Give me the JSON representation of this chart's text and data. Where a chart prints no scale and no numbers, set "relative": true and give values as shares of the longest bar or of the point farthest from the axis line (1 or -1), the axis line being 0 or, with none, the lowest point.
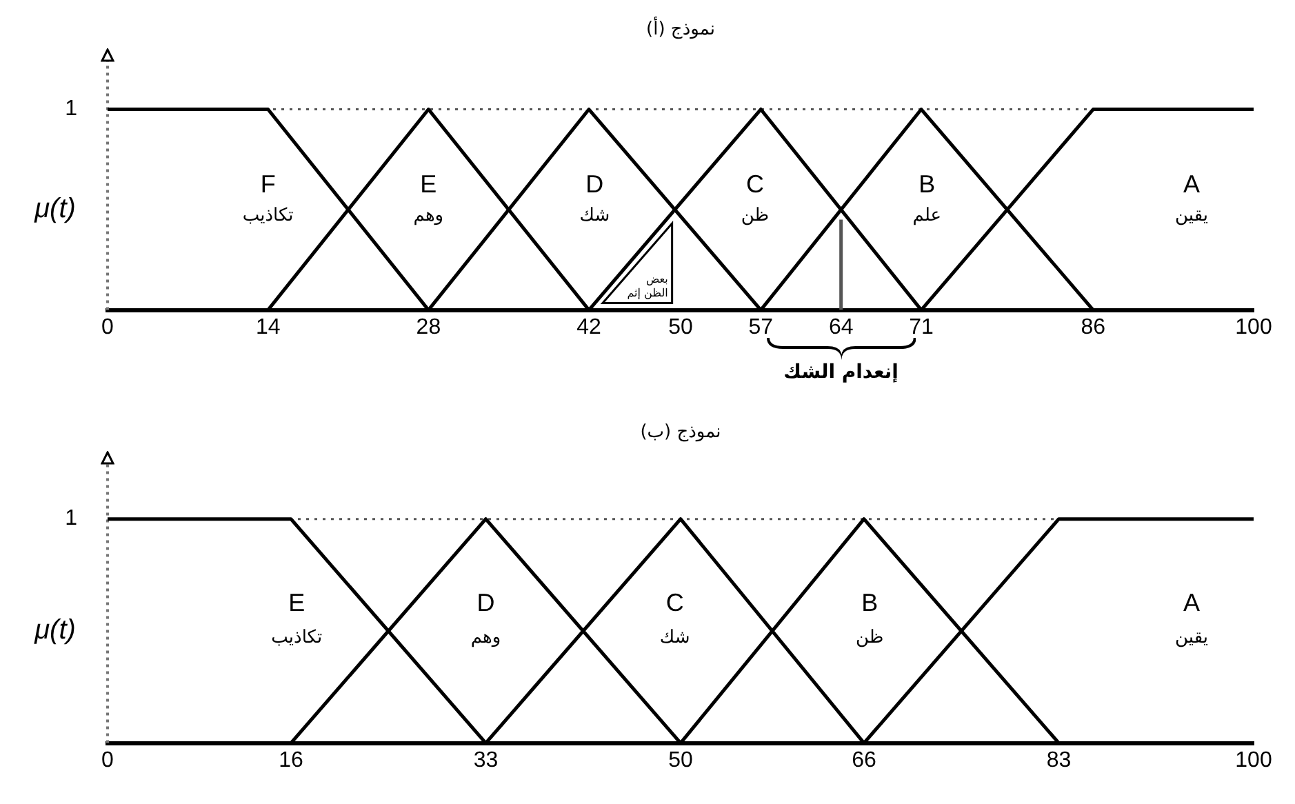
{
  "chart_data": [
    {
      "type": "line",
      "title": "نموذج (أ)",
      "ylabel": "μ(t)",
      "relative": true,
      "xlim": [
        0,
        100
      ],
      "xticks": [
        0,
        14,
        28,
        42,
        50,
        57,
        64,
        71,
        86,
        100
      ],
      "grid": false,
      "legend": false,
      "marker": "none",
      "line_style": "solid",
      "series": [
        {
          "name": "F",
          "color": "#000000",
          "x": [
            0,
            14,
            28
          ],
          "values": [
            1,
            1,
            0
          ]
        },
        {
          "name": "E",
          "color": "#000000",
          "x": [
            14,
            28,
            42
          ],
          "values": [
            0,
            1,
            0
          ]
        },
        {
          "name": "D",
          "color": "#000000",
          "x": [
            28,
            42,
            57
          ],
          "values": [
            0,
            1,
            0
          ]
        },
        {
          "name": "C",
          "color": "#000000",
          "x": [
            42,
            57,
            71
          ],
          "values": [
            0,
            1,
            0
          ]
        },
        {
          "name": "B",
          "color": "#000000",
          "x": [
            57,
            71,
            86
          ],
          "values": [
            0,
            1,
            0
          ]
        },
        {
          "name": "A",
          "color": "#000000",
          "x": [
            71,
            86,
            100
          ],
          "values": [
            0,
            1,
            1
          ]
        },
        {
          "color": "#555555",
          "x": [
            64,
            64
          ],
          "values": [
            0,
            0.45
          ]
        }
      ],
      "ref_lines": [
        {
          "axis": "y",
          "value": 1,
          "line_style": "dotted",
          "color": "#555555"
        }
      ],
      "annotations": [
        "1",
        "تكاذيب",
        "وهم",
        "شك",
        "ظن",
        "علم",
        "يقين",
        "بعض\nالظن إثم",
        "إنعدام الشك"
      ]
    },
    {
      "type": "line",
      "title": "نموذج (ب)",
      "ylabel": "μ(t)",
      "relative": true,
      "xlim": [
        0,
        100
      ],
      "xticks": [
        0,
        16,
        33,
        50,
        66,
        83,
        100
      ],
      "grid": false,
      "legend": false,
      "marker": "none",
      "line_style": "solid",
      "series": [
        {
          "name": "E",
          "color": "#000000",
          "x": [
            0,
            16,
            33
          ],
          "values": [
            1,
            1,
            0
          ]
        },
        {
          "name": "D",
          "color": "#000000",
          "x": [
            16,
            33,
            50
          ],
          "values": [
            0,
            1,
            0
          ]
        },
        {
          "name": "C",
          "color": "#000000",
          "x": [
            33,
            50,
            66
          ],
          "values": [
            0,
            1,
            0
          ]
        },
        {
          "name": "B",
          "color": "#000000",
          "x": [
            50,
            66,
            83
          ],
          "values": [
            0,
            1,
            0
          ]
        },
        {
          "name": "A",
          "color": "#000000",
          "x": [
            66,
            83,
            100
          ],
          "values": [
            0,
            1,
            1
          ]
        }
      ],
      "ref_lines": [
        {
          "axis": "y",
          "value": 1,
          "line_style": "dotted",
          "color": "#555555"
        }
      ],
      "annotations": [
        "1",
        "تكاذيب",
        "وهم",
        "شك",
        "ظن",
        "يقين"
      ]
    }
  ]
}
